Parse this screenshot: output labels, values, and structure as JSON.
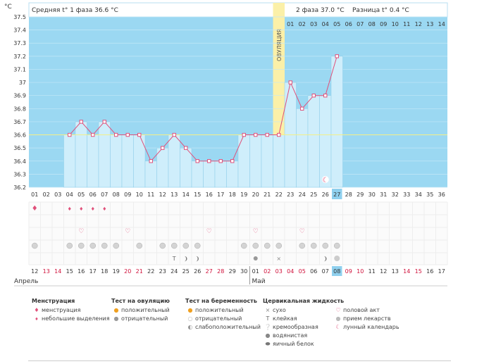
{
  "chart_data": {
    "type": "line",
    "y_unit": "°C",
    "ylim": [
      36.2,
      37.5
    ],
    "yticks": [
      "37.5",
      "37.4",
      "37.3",
      "37.2",
      "37.1",
      "37",
      "36.9",
      "36.8",
      "36.7",
      "36.6",
      "36.5",
      "36.4",
      "36.3",
      "36.2"
    ],
    "cycle_days": [
      "01",
      "02",
      "03",
      "04",
      "05",
      "06",
      "07",
      "08",
      "09",
      "10",
      "11",
      "12",
      "13",
      "14",
      "15",
      "16",
      "17",
      "18",
      "19",
      "20",
      "21",
      "22",
      "23",
      "24",
      "25",
      "26",
      "27",
      "28",
      "29",
      "30",
      "31",
      "32",
      "33",
      "34",
      "35",
      "36"
    ],
    "temperatures": [
      null,
      null,
      null,
      36.6,
      36.7,
      36.6,
      36.7,
      36.6,
      36.6,
      36.6,
      36.4,
      36.5,
      36.6,
      36.5,
      36.4,
      36.4,
      36.4,
      36.4,
      36.6,
      36.6,
      36.6,
      36.6,
      37.0,
      36.8,
      36.9,
      36.9,
      37.2,
      null,
      null,
      null,
      null,
      null,
      null,
      null,
      null,
      null
    ],
    "coverline": 36.6,
    "phase1_avg_label": "Средняя t° 1 фаза 36.6 °C",
    "phase2_label": "2 фаза 37.0 °C",
    "diff_label": "Разница t° 0.4 °C",
    "ovulation_label": "ОВУЛЯЦИЯ",
    "ovulation_day": 22,
    "post_ovulation_days": [
      "01",
      "02",
      "03",
      "04",
      "05",
      "06",
      "07",
      "08",
      "09",
      "10",
      "11",
      "12",
      "13",
      "14"
    ],
    "current_day": 27,
    "dates": [
      "12",
      "13",
      "14",
      "15",
      "16",
      "17",
      "18",
      "19",
      "20",
      "21",
      "22",
      "23",
      "24",
      "25",
      "26",
      "27",
      "28",
      "29",
      "30",
      "01",
      "02",
      "03",
      "04",
      "05",
      "06",
      "07",
      "08",
      "09",
      "10",
      "11",
      "12",
      "13",
      "14",
      "15",
      "16",
      "17"
    ],
    "weekend_dates": [
      1,
      2,
      8,
      9,
      15,
      16,
      20,
      21,
      22,
      23,
      27,
      28,
      32,
      33
    ],
    "months": [
      "Апрель",
      "Май"
    ]
  },
  "legend": {
    "menstruation": {
      "title": "Менструация",
      "items": [
        "менструация",
        "небольшие выделения"
      ]
    },
    "ovulation_test": {
      "title": "Тест на овуляцию",
      "items": [
        "положительный",
        "отрицательный"
      ]
    },
    "pregnancy_test": {
      "title": "Тест на беременность",
      "items": [
        "положительный",
        "отрицательный",
        "слабоположительный"
      ]
    },
    "cervical_fluid": {
      "title": "Цервикальная жидкость",
      "items": [
        "сухо",
        "клейкая",
        "кремообразная",
        "водянистая",
        "яичный белок"
      ]
    },
    "other": {
      "items": [
        "половой акт",
        "прием лекарств",
        "лунный календарь"
      ]
    }
  },
  "colors": {
    "sky": "#9bd8f2",
    "bar": "#cfeefb",
    "bar_edge": "#8ccbe8",
    "line": "#e0507a",
    "ovulation": "#fbf0a8",
    "header_bg": "#ffffff",
    "accent": "#e0507a",
    "current": "#8fd0ee"
  }
}
